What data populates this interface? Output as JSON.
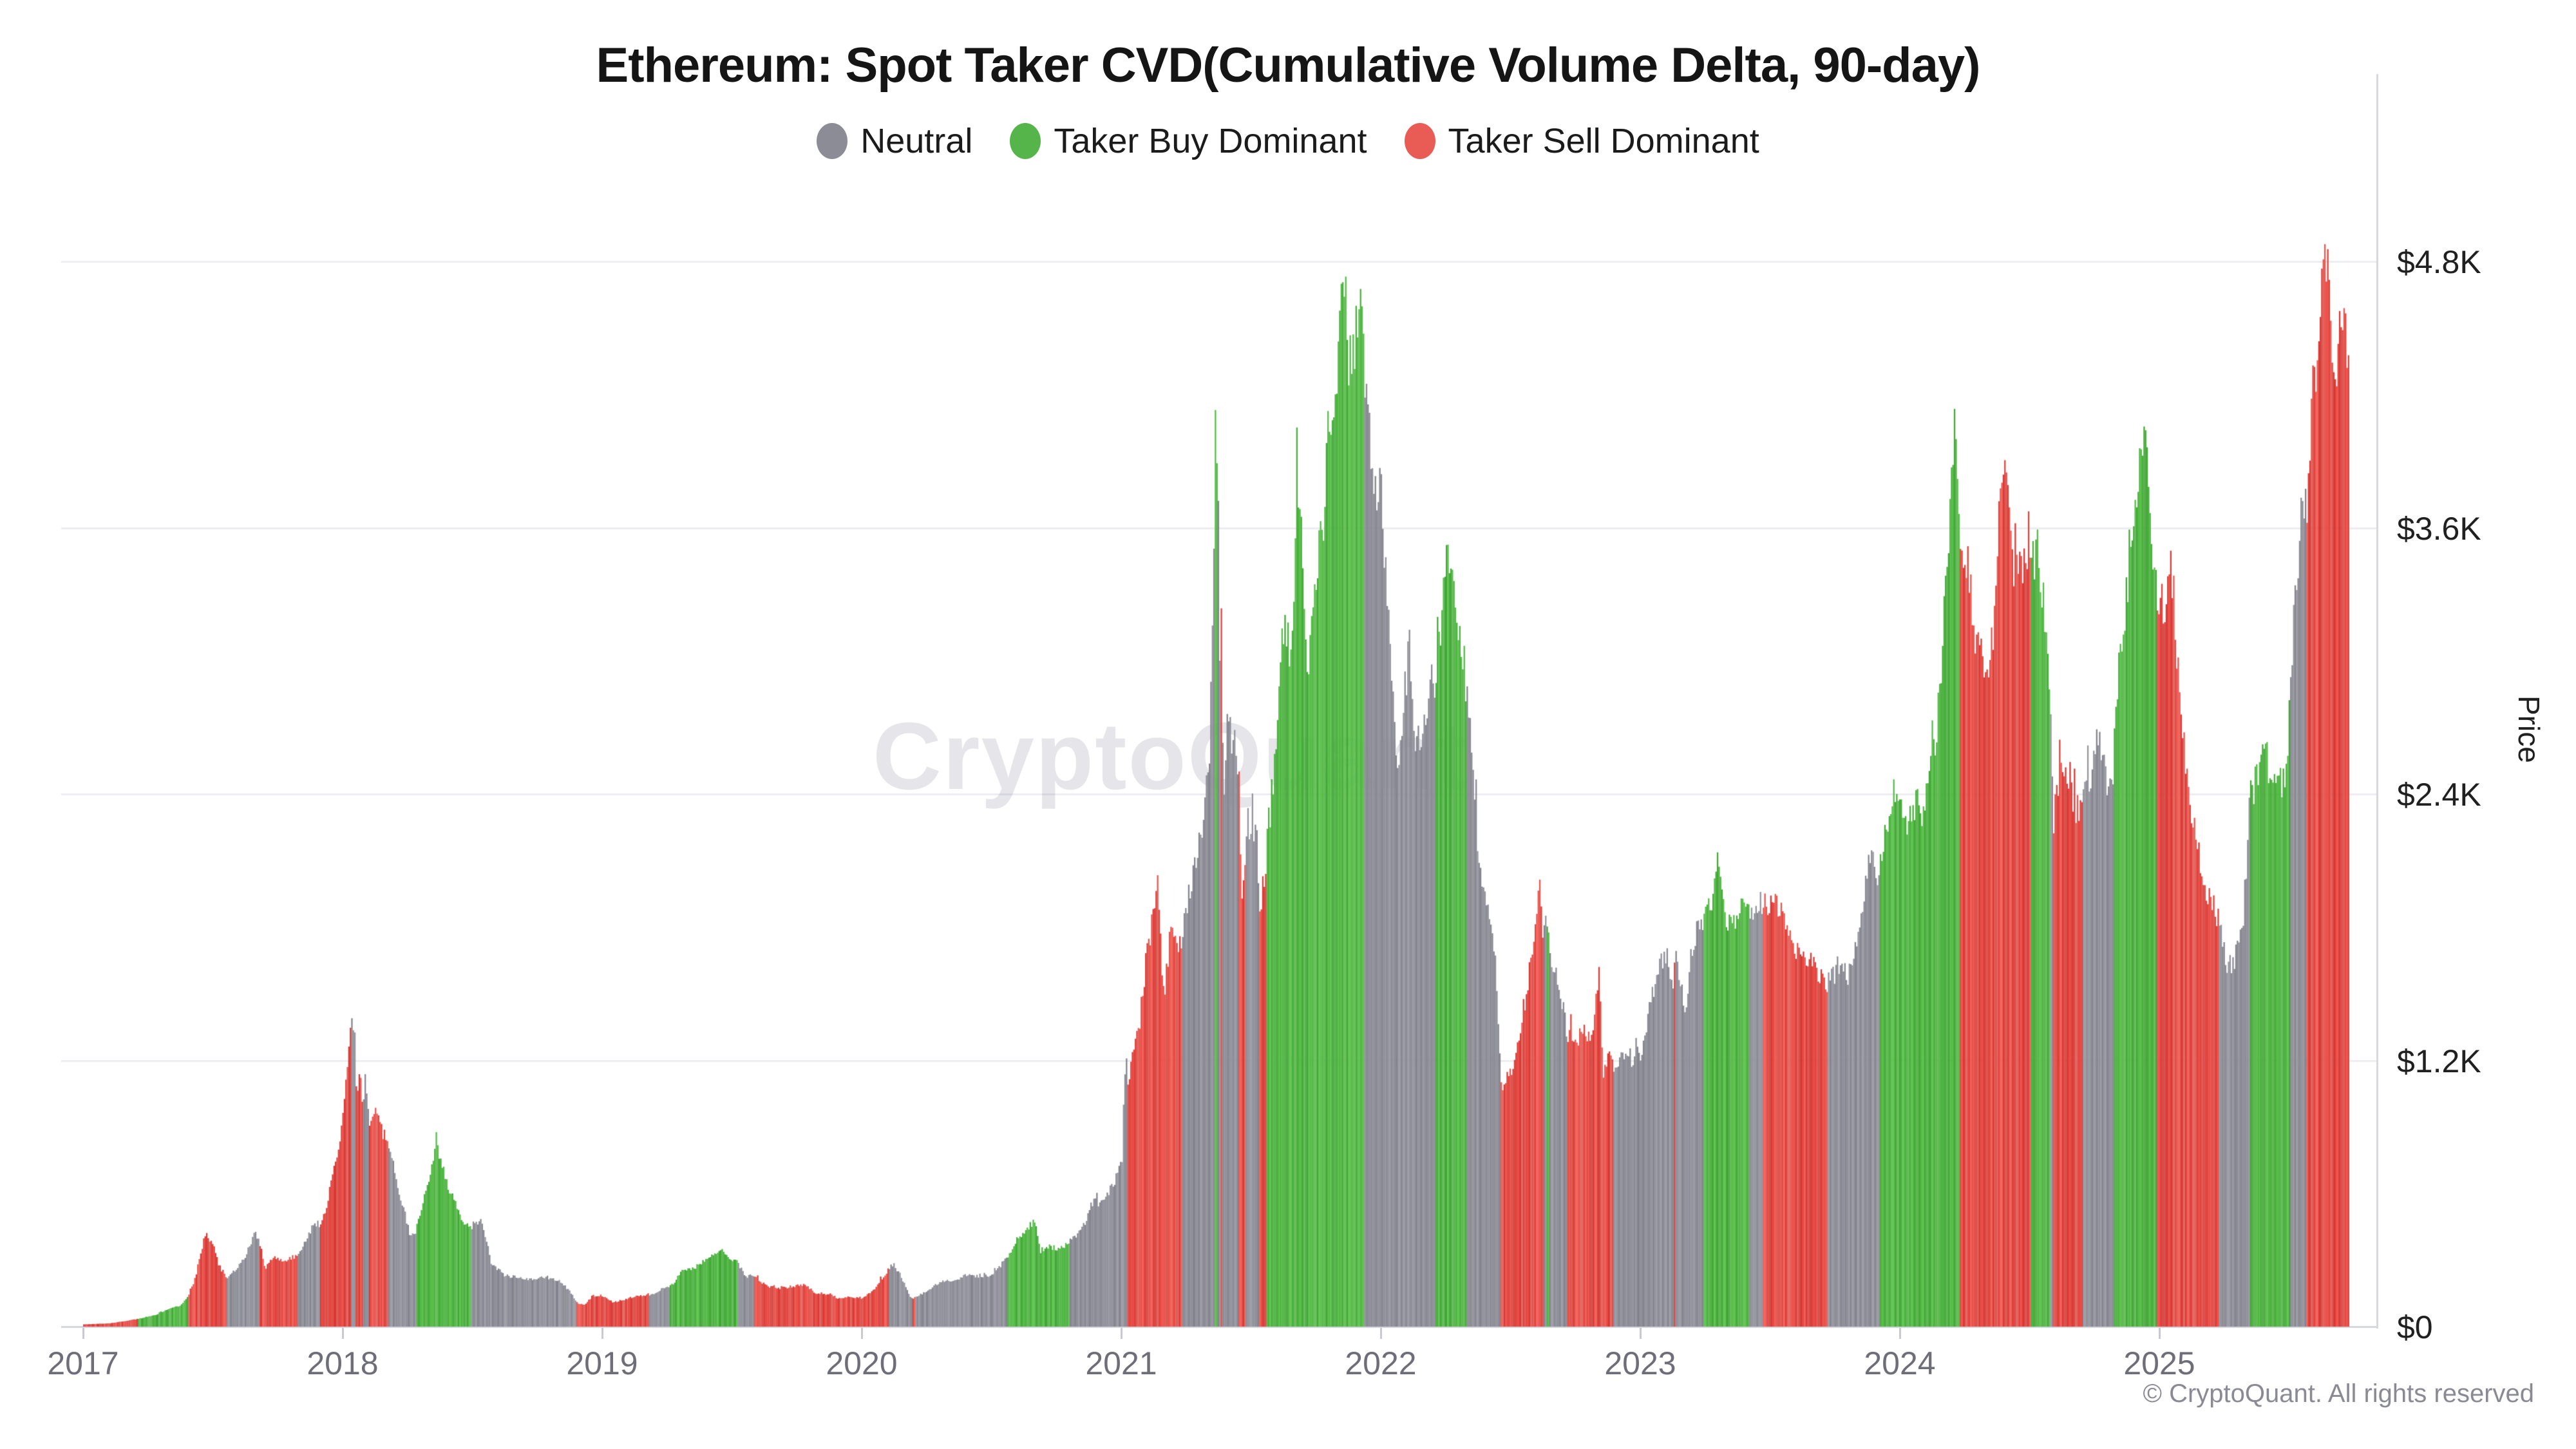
{
  "title": "Ethereum: Spot Taker CVD(Cumulative Volume Delta, 90-day)",
  "legend": {
    "items": [
      {
        "label": "Neutral",
        "key": "N",
        "color": "#8C8C96"
      },
      {
        "label": "Taker Buy Dominant",
        "key": "B",
        "color": "#55B44A"
      },
      {
        "label": "Taker Sell Dominant",
        "key": "S",
        "color": "#E95C55"
      }
    ]
  },
  "watermark": "CryptoQuant",
  "footer": {
    "copyright": "© CryptoQuant. All rights reserved"
  },
  "y_axis": {
    "title": "Price",
    "ticks": [
      {
        "label": "$0",
        "value": 0
      },
      {
        "label": "$1.2K",
        "value": 1200
      },
      {
        "label": "$2.4K",
        "value": 2400
      },
      {
        "label": "$3.6K",
        "value": 3600
      },
      {
        "label": "$4.8K",
        "value": 4800
      }
    ]
  },
  "x_axis": {
    "years": [
      2017,
      2018,
      2019,
      2020,
      2021,
      2022,
      2023,
      2024,
      2025
    ]
  },
  "chart_data": {
    "type": "bar",
    "title": "Ethereum: Spot Taker CVD(Cumulative Volume Delta, 90-day)",
    "xlabel": "",
    "ylabel": "Price",
    "ylim": [
      0,
      4800
    ],
    "x_domain": [
      "2017-01",
      "2025-09"
    ],
    "grid": "horizontal",
    "legend_position": "top-center",
    "states": {
      "N": "Neutral",
      "B": "Taker Buy Dominant",
      "S": "Taker Sell Dominant"
    },
    "bar_shades": {
      "N": [
        "#8A8A94",
        "#93939D",
        "#83838D"
      ],
      "B": [
        "#47B139",
        "#56BB48",
        "#3FA833"
      ],
      "S": [
        "#E2413A",
        "#E9564F",
        "#D93833"
      ]
    },
    "x_unit": "years_since_2017_01",
    "y_unit": "USD",
    "series_keypoints": [
      [
        0.0,
        10,
        "S"
      ],
      [
        0.1,
        15,
        "S"
      ],
      [
        0.16,
        25,
        "S"
      ],
      [
        0.21,
        35,
        "B"
      ],
      [
        0.28,
        55,
        "B"
      ],
      [
        0.33,
        80,
        "B"
      ],
      [
        0.37,
        95,
        "B"
      ],
      [
        0.4,
        130,
        "S"
      ],
      [
        0.43,
        220,
        "S"
      ],
      [
        0.45,
        330,
        "S"
      ],
      [
        0.47,
        420,
        "S"
      ],
      [
        0.5,
        360,
        "S"
      ],
      [
        0.52,
        280,
        "S"
      ],
      [
        0.55,
        215,
        "N"
      ],
      [
        0.58,
        250,
        "N"
      ],
      [
        0.62,
        310,
        "N"
      ],
      [
        0.66,
        420,
        "N"
      ],
      [
        0.675,
        390,
        "S"
      ],
      [
        0.7,
        265,
        "S"
      ],
      [
        0.73,
        310,
        "S"
      ],
      [
        0.77,
        300,
        "S"
      ],
      [
        0.8,
        305,
        "S"
      ],
      [
        0.825,
        320,
        "N"
      ],
      [
        0.86,
        400,
        "N"
      ],
      [
        0.89,
        470,
        "N"
      ],
      [
        0.91,
        460,
        "S"
      ],
      [
        0.935,
        520,
        "S"
      ],
      [
        0.96,
        700,
        "S"
      ],
      [
        0.985,
        830,
        "S"
      ],
      [
        1.0,
        950,
        "S"
      ],
      [
        1.025,
        1300,
        "S"
      ],
      [
        1.03,
        1420,
        "N"
      ],
      [
        1.045,
        1350,
        "N"
      ],
      [
        1.05,
        1050,
        "S"
      ],
      [
        1.065,
        1160,
        "S"
      ],
      [
        1.075,
        1000,
        "N"
      ],
      [
        1.085,
        1160,
        "N"
      ],
      [
        1.1,
        900,
        "S"
      ],
      [
        1.13,
        980,
        "S"
      ],
      [
        1.155,
        860,
        "S"
      ],
      [
        1.17,
        850,
        "N"
      ],
      [
        1.22,
        590,
        "N"
      ],
      [
        1.26,
        400,
        "N"
      ],
      [
        1.28,
        430,
        "B"
      ],
      [
        1.32,
        610,
        "B"
      ],
      [
        1.34,
        700,
        "B"
      ],
      [
        1.36,
        830,
        "B"
      ],
      [
        1.4,
        640,
        "B"
      ],
      [
        1.44,
        530,
        "B"
      ],
      [
        1.47,
        460,
        "B"
      ],
      [
        1.49,
        450,
        "N"
      ],
      [
        1.53,
        480,
        "N"
      ],
      [
        1.57,
        290,
        "N"
      ],
      [
        1.62,
        230,
        "N"
      ],
      [
        1.68,
        220,
        "N"
      ],
      [
        1.73,
        210,
        "N"
      ],
      [
        1.78,
        225,
        "N"
      ],
      [
        1.84,
        200,
        "N"
      ],
      [
        1.88,
        150,
        "N"
      ],
      [
        1.9,
        110,
        "S"
      ],
      [
        1.93,
        95,
        "S"
      ],
      [
        1.96,
        140,
        "S"
      ],
      [
        2.0,
        140,
        "S"
      ],
      [
        2.04,
        110,
        "S"
      ],
      [
        2.09,
        125,
        "S"
      ],
      [
        2.14,
        142,
        "S"
      ],
      [
        2.18,
        140,
        "N"
      ],
      [
        2.23,
        168,
        "N"
      ],
      [
        2.26,
        178,
        "B"
      ],
      [
        2.31,
        255,
        "B"
      ],
      [
        2.36,
        270,
        "B"
      ],
      [
        2.41,
        315,
        "B"
      ],
      [
        2.46,
        360,
        "B"
      ],
      [
        2.49,
        300,
        "B"
      ],
      [
        2.52,
        290,
        "N"
      ],
      [
        2.55,
        225,
        "N"
      ],
      [
        2.58,
        230,
        "S"
      ],
      [
        2.63,
        185,
        "S"
      ],
      [
        2.68,
        172,
        "S"
      ],
      [
        2.73,
        182,
        "S"
      ],
      [
        2.78,
        192,
        "S"
      ],
      [
        2.82,
        152,
        "S"
      ],
      [
        2.87,
        146,
        "S"
      ],
      [
        2.91,
        128,
        "S"
      ],
      [
        2.95,
        133,
        "S"
      ],
      [
        3.0,
        130,
        "S"
      ],
      [
        3.04,
        158,
        "S"
      ],
      [
        3.08,
        225,
        "S"
      ],
      [
        3.1,
        258,
        "N"
      ],
      [
        3.12,
        282,
        "N"
      ],
      [
        3.15,
        225,
        "N"
      ],
      [
        3.185,
        132,
        "N"
      ],
      [
        3.195,
        122,
        "S"
      ],
      [
        3.205,
        135,
        "N"
      ],
      [
        3.25,
        162,
        "N"
      ],
      [
        3.3,
        200,
        "N"
      ],
      [
        3.35,
        208,
        "N"
      ],
      [
        3.4,
        232,
        "N"
      ],
      [
        3.45,
        228,
        "N"
      ],
      [
        3.5,
        232,
        "N"
      ],
      [
        3.55,
        300,
        "N"
      ],
      [
        3.56,
        312,
        "B"
      ],
      [
        3.6,
        390,
        "B"
      ],
      [
        3.625,
        432,
        "B"
      ],
      [
        3.665,
        475,
        "B"
      ],
      [
        3.685,
        338,
        "B"
      ],
      [
        3.71,
        365,
        "B"
      ],
      [
        3.75,
        352,
        "B"
      ],
      [
        3.79,
        372,
        "B"
      ],
      [
        3.8,
        385,
        "N"
      ],
      [
        3.835,
        420,
        "N"
      ],
      [
        3.855,
        465,
        "N"
      ],
      [
        3.9,
        600,
        "N"
      ],
      [
        3.91,
        525,
        "N"
      ],
      [
        3.93,
        590,
        "N"
      ],
      [
        3.96,
        625,
        "N"
      ],
      [
        3.985,
        685,
        "N"
      ],
      [
        4.0,
        740,
        "N"
      ],
      [
        4.015,
        1270,
        "N"
      ],
      [
        4.022,
        1060,
        "S"
      ],
      [
        4.05,
        1290,
        "S"
      ],
      [
        4.07,
        1390,
        "S"
      ],
      [
        4.1,
        1720,
        "S"
      ],
      [
        4.12,
        1850,
        "S"
      ],
      [
        4.14,
        1990,
        "S"
      ],
      [
        4.16,
        1480,
        "S"
      ],
      [
        4.19,
        1790,
        "S"
      ],
      [
        4.22,
        1700,
        "S"
      ],
      [
        4.23,
        1750,
        "N"
      ],
      [
        4.26,
        1950,
        "N"
      ],
      [
        4.29,
        2120,
        "N"
      ],
      [
        4.32,
        2360,
        "N"
      ],
      [
        4.335,
        2520,
        "N"
      ],
      [
        4.345,
        2950,
        "N"
      ],
      [
        4.35,
        3250,
        "N"
      ],
      [
        4.355,
        3520,
        "N"
      ],
      [
        4.358,
        4000,
        "B"
      ],
      [
        4.362,
        4170,
        "B"
      ],
      [
        4.368,
        3950,
        "N"
      ],
      [
        4.375,
        3400,
        "N"
      ],
      [
        4.378,
        3000,
        "S"
      ],
      [
        4.385,
        3420,
        "N"
      ],
      [
        4.39,
        2350,
        "N"
      ],
      [
        4.41,
        2750,
        "N"
      ],
      [
        4.43,
        2620,
        "N"
      ],
      [
        4.45,
        2550,
        "S"
      ],
      [
        4.462,
        1980,
        "S"
      ],
      [
        4.475,
        2120,
        "N"
      ],
      [
        4.5,
        2320,
        "N"
      ],
      [
        4.52,
        2180,
        "N"
      ],
      [
        4.53,
        1890,
        "S"
      ],
      [
        4.55,
        2000,
        "S"
      ],
      [
        4.56,
        2200,
        "B"
      ],
      [
        4.6,
        2650,
        "B"
      ],
      [
        4.62,
        3170,
        "B"
      ],
      [
        4.645,
        3060,
        "B"
      ],
      [
        4.665,
        3340,
        "B"
      ],
      [
        4.673,
        3940,
        "B"
      ],
      [
        4.7,
        3380,
        "B"
      ],
      [
        4.72,
        2920,
        "B"
      ],
      [
        4.75,
        3420,
        "B"
      ],
      [
        4.78,
        3620,
        "B"
      ],
      [
        4.8,
        4170,
        "B"
      ],
      [
        4.82,
        4080,
        "B"
      ],
      [
        4.855,
        4800,
        "B"
      ],
      [
        4.87,
        4380,
        "B"
      ],
      [
        4.885,
        4320,
        "B"
      ],
      [
        4.915,
        4620,
        "B"
      ],
      [
        4.925,
        4480,
        "B"
      ],
      [
        4.935,
        4300,
        "N"
      ],
      [
        4.95,
        4020,
        "N"
      ],
      [
        4.97,
        3850,
        "N"
      ],
      [
        5.0,
        3720,
        "N"
      ],
      [
        5.03,
        3170,
        "N"
      ],
      [
        5.06,
        2420,
        "N"
      ],
      [
        5.09,
        2850,
        "N"
      ],
      [
        5.11,
        3080,
        "N"
      ],
      [
        5.13,
        2620,
        "N"
      ],
      [
        5.16,
        2620,
        "N"
      ],
      [
        5.19,
        2950,
        "N"
      ],
      [
        5.21,
        2880,
        "B"
      ],
      [
        5.235,
        3280,
        "B"
      ],
      [
        5.26,
        3520,
        "B"
      ],
      [
        5.29,
        3220,
        "B"
      ],
      [
        5.32,
        2980,
        "B"
      ],
      [
        5.33,
        2850,
        "N"
      ],
      [
        5.36,
        2350,
        "N"
      ],
      [
        5.385,
        1980,
        "N"
      ],
      [
        5.41,
        1940,
        "N"
      ],
      [
        5.44,
        1620,
        "N"
      ],
      [
        5.46,
        1080,
        "S"
      ],
      [
        5.49,
        1120,
        "S"
      ],
      [
        5.52,
        1230,
        "S"
      ],
      [
        5.55,
        1450,
        "S"
      ],
      [
        5.58,
        1680,
        "S"
      ],
      [
        5.61,
        1980,
        "S"
      ],
      [
        5.623,
        1780,
        "N"
      ],
      [
        5.637,
        1840,
        "B"
      ],
      [
        5.648,
        1700,
        "N"
      ],
      [
        5.68,
        1560,
        "N"
      ],
      [
        5.7,
        1440,
        "N"
      ],
      [
        5.715,
        1330,
        "S"
      ],
      [
        5.75,
        1310,
        "S"
      ],
      [
        5.78,
        1300,
        "S"
      ],
      [
        5.81,
        1310,
        "S"
      ],
      [
        5.838,
        1620,
        "S"
      ],
      [
        5.855,
        1140,
        "S"
      ],
      [
        5.88,
        1220,
        "S"
      ],
      [
        5.895,
        1190,
        "N"
      ],
      [
        5.93,
        1210,
        "N"
      ],
      [
        5.96,
        1195,
        "N"
      ],
      [
        6.0,
        1210,
        "N"
      ],
      [
        6.03,
        1420,
        "N"
      ],
      [
        6.07,
        1630,
        "N"
      ],
      [
        6.1,
        1660,
        "N"
      ],
      [
        6.125,
        1560,
        "S"
      ],
      [
        6.135,
        1640,
        "N"
      ],
      [
        6.17,
        1430,
        "N"
      ],
      [
        6.21,
        1770,
        "N"
      ],
      [
        6.24,
        1800,
        "B"
      ],
      [
        6.27,
        1900,
        "B"
      ],
      [
        6.29,
        2120,
        "B"
      ],
      [
        6.32,
        1860,
        "B"
      ],
      [
        6.36,
        1810,
        "B"
      ],
      [
        6.4,
        1910,
        "B"
      ],
      [
        6.42,
        1880,
        "N"
      ],
      [
        6.45,
        1910,
        "N"
      ],
      [
        6.47,
        1890,
        "S"
      ],
      [
        6.5,
        1920,
        "S"
      ],
      [
        6.54,
        1860,
        "S"
      ],
      [
        6.62,
        1650,
        "S"
      ],
      [
        6.66,
        1635,
        "S"
      ],
      [
        6.7,
        1590,
        "S"
      ],
      [
        6.72,
        1550,
        "N"
      ],
      [
        6.76,
        1620,
        "N"
      ],
      [
        6.79,
        1560,
        "N"
      ],
      [
        6.82,
        1620,
        "N"
      ],
      [
        6.84,
        1820,
        "N"
      ],
      [
        6.87,
        2060,
        "N"
      ],
      [
        6.89,
        2140,
        "N"
      ],
      [
        6.91,
        2010,
        "N"
      ],
      [
        6.92,
        2060,
        "B"
      ],
      [
        6.95,
        2260,
        "B"
      ],
      [
        6.98,
        2360,
        "B"
      ],
      [
        7.0,
        2310,
        "B"
      ],
      [
        7.03,
        2260,
        "B"
      ],
      [
        7.06,
        2360,
        "B"
      ],
      [
        7.09,
        2310,
        "B"
      ],
      [
        7.12,
        2520,
        "B"
      ],
      [
        7.15,
        2830,
        "B"
      ],
      [
        7.17,
        3250,
        "B"
      ],
      [
        7.19,
        3650,
        "B"
      ],
      [
        7.21,
        4070,
        "B"
      ],
      [
        7.23,
        3620,
        "S"
      ],
      [
        7.26,
        3420,
        "S"
      ],
      [
        7.29,
        3120,
        "S"
      ],
      [
        7.33,
        2920,
        "S"
      ],
      [
        7.36,
        3120,
        "S"
      ],
      [
        7.385,
        3890,
        "S"
      ],
      [
        7.41,
        3720,
        "S"
      ],
      [
        7.44,
        3420,
        "S"
      ],
      [
        7.47,
        3460,
        "S"
      ],
      [
        7.5,
        3420,
        "B"
      ],
      [
        7.53,
        3520,
        "B"
      ],
      [
        7.56,
        3120,
        "B"
      ],
      [
        7.578,
        2750,
        "N"
      ],
      [
        7.59,
        2250,
        "S"
      ],
      [
        7.62,
        2580,
        "S"
      ],
      [
        7.65,
        2480,
        "S"
      ],
      [
        7.68,
        2320,
        "S"
      ],
      [
        7.7,
        2360,
        "N"
      ],
      [
        7.73,
        2470,
        "N"
      ],
      [
        7.76,
        2680,
        "N"
      ],
      [
        7.79,
        2460,
        "N"
      ],
      [
        7.82,
        2520,
        "B"
      ],
      [
        7.85,
        3120,
        "B"
      ],
      [
        7.88,
        3360,
        "B"
      ],
      [
        7.9,
        3680,
        "B"
      ],
      [
        7.93,
        4010,
        "B"
      ],
      [
        7.95,
        3920,
        "B"
      ],
      [
        7.97,
        3480,
        "B"
      ],
      [
        7.985,
        3360,
        "S"
      ],
      [
        8.02,
        3220,
        "S"
      ],
      [
        8.045,
        3440,
        "S"
      ],
      [
        8.08,
        2760,
        "S"
      ],
      [
        8.11,
        2420,
        "S"
      ],
      [
        8.14,
        2220,
        "S"
      ],
      [
        8.17,
        1960,
        "S"
      ],
      [
        8.2,
        1900,
        "S"
      ],
      [
        8.225,
        1820,
        "N"
      ],
      [
        8.26,
        1620,
        "N"
      ],
      [
        8.29,
        1660,
        "N"
      ],
      [
        8.32,
        1820,
        "N"
      ],
      [
        8.345,
        2350,
        "B"
      ],
      [
        8.38,
        2520,
        "B"
      ],
      [
        8.41,
        2560,
        "B"
      ],
      [
        8.44,
        2460,
        "B"
      ],
      [
        8.47,
        2420,
        "B"
      ],
      [
        8.49,
        2560,
        "B"
      ],
      [
        8.5,
        2900,
        "N"
      ],
      [
        8.53,
        3420,
        "N"
      ],
      [
        8.555,
        3770,
        "N"
      ],
      [
        8.565,
        3720,
        "S"
      ],
      [
        8.59,
        4250,
        "S"
      ],
      [
        8.61,
        4420,
        "S"
      ],
      [
        8.637,
        4830,
        "S"
      ],
      [
        8.655,
        4580,
        "S"
      ],
      [
        8.675,
        4310,
        "S"
      ],
      [
        8.7,
        4520,
        "S"
      ],
      [
        8.715,
        4420,
        "S"
      ],
      [
        8.73,
        4180,
        "S"
      ]
    ]
  }
}
